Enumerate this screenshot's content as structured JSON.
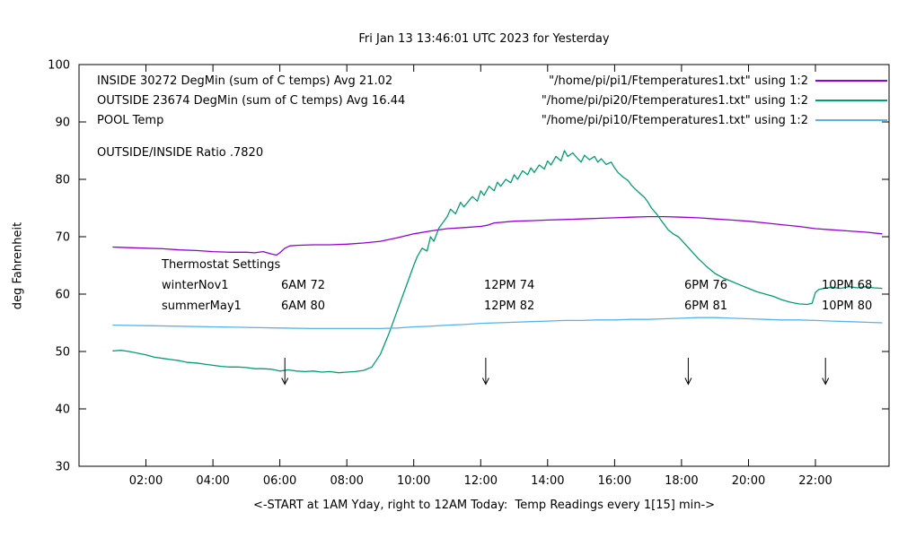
{
  "title": "Fri Jan 13 13:46:01 UTC 2023 for Yesterday",
  "ylabel": "deg Fahrenheit",
  "xlabel": "<-START at 1AM Yday, right to 12AM Today:  Temp Readings every 1[15] min->",
  "annotations": {
    "inside_label": "INSIDE 30272 DegMin (sum of C temps) Avg 21.02",
    "outside_label": "OUTSIDE 23674 DegMin (sum of C temps) Avg 16.44",
    "pool_label": "POOL Temp",
    "ratio_label": "OUTSIDE/INSIDE Ratio .7820",
    "thermostat": {
      "heading": "Thermostat Settings",
      "rows": [
        {
          "name": "winterNov1",
          "settings": [
            "6AM 72",
            "12PM 74",
            "6PM 76",
            "10PM 68"
          ]
        },
        {
          "name": "summerMay1",
          "settings": [
            "6AM 80",
            "12PM 82",
            "6PM 81",
            "10PM 80"
          ]
        }
      ]
    }
  },
  "chart_data": {
    "type": "line",
    "title": "Fri Jan 13 13:46:01 UTC 2023 for Yesterday",
    "xlabel": "<-START at 1AM Yday, right to 12AM Today:  Temp Readings every 1[15] min->",
    "ylabel": "deg Fahrenheit",
    "xlim": [
      0,
      24.2
    ],
    "ylim": [
      30,
      100
    ],
    "grid": false,
    "legend_position": "top right",
    "xticks": [
      {
        "v": 2,
        "label": "02:00"
      },
      {
        "v": 4,
        "label": "04:00"
      },
      {
        "v": 6,
        "label": "06:00"
      },
      {
        "v": 8,
        "label": "08:00"
      },
      {
        "v": 10,
        "label": "10:00"
      },
      {
        "v": 12,
        "label": "12:00"
      },
      {
        "v": 14,
        "label": "14:00"
      },
      {
        "v": 16,
        "label": "16:00"
      },
      {
        "v": 18,
        "label": "18:00"
      },
      {
        "v": 20,
        "label": "20:00"
      },
      {
        "v": 22,
        "label": "22:00"
      }
    ],
    "yticks": [
      30,
      40,
      50,
      60,
      70,
      80,
      90,
      100
    ],
    "arrows": [
      {
        "x": 6.15,
        "y_from": 48.9,
        "y_to": 44.3
      },
      {
        "x": 12.15,
        "y_from": 48.9,
        "y_to": 44.3
      },
      {
        "x": 18.2,
        "y_from": 48.9,
        "y_to": 44.3
      },
      {
        "x": 22.3,
        "y_from": 48.9,
        "y_to": 44.3
      }
    ],
    "series": [
      {
        "name": "INSIDE",
        "legend": "\"/home/pi/pi1/Ftemperatures1.txt\" using 1:2",
        "color": "#9400d3",
        "points": [
          [
            1,
            68.2
          ],
          [
            1.5,
            68.1
          ],
          [
            2,
            68
          ],
          [
            2.5,
            67.9
          ],
          [
            3,
            67.7
          ],
          [
            3.5,
            67.6
          ],
          [
            4,
            67.4
          ],
          [
            4.5,
            67.3
          ],
          [
            5,
            67.3
          ],
          [
            5.25,
            67.2
          ],
          [
            5.5,
            67.4
          ],
          [
            5.75,
            67
          ],
          [
            5.9,
            66.8
          ],
          [
            6,
            67.2
          ],
          [
            6.15,
            68
          ],
          [
            6.3,
            68.4
          ],
          [
            6.5,
            68.5
          ],
          [
            7,
            68.6
          ],
          [
            7.5,
            68.6
          ],
          [
            8,
            68.7
          ],
          [
            8.5,
            68.9
          ],
          [
            9,
            69.2
          ],
          [
            9.5,
            69.8
          ],
          [
            10,
            70.5
          ],
          [
            10.5,
            71
          ],
          [
            11,
            71.4
          ],
          [
            11.5,
            71.6
          ],
          [
            12,
            71.8
          ],
          [
            12.2,
            72
          ],
          [
            12.4,
            72.4
          ],
          [
            13,
            72.7
          ],
          [
            13.5,
            72.8
          ],
          [
            14,
            72.9
          ],
          [
            14.5,
            73
          ],
          [
            15,
            73.1
          ],
          [
            15.5,
            73.2
          ],
          [
            16,
            73.3
          ],
          [
            16.5,
            73.4
          ],
          [
            17,
            73.5
          ],
          [
            17.5,
            73.5
          ],
          [
            18,
            73.4
          ],
          [
            18.5,
            73.3
          ],
          [
            19,
            73.1
          ],
          [
            19.5,
            72.9
          ],
          [
            20,
            72.7
          ],
          [
            20.5,
            72.4
          ],
          [
            21,
            72.1
          ],
          [
            21.5,
            71.8
          ],
          [
            22,
            71.4
          ],
          [
            22.5,
            71.2
          ],
          [
            23,
            71
          ],
          [
            23.5,
            70.8
          ],
          [
            24,
            70.5
          ]
        ]
      },
      {
        "name": "OUTSIDE",
        "legend": "\"/home/pi/pi20/Ftemperatures1.txt\" using 1:2",
        "color": "#009e73",
        "points": [
          [
            1,
            50.1
          ],
          [
            1.25,
            50.2
          ],
          [
            1.5,
            50
          ],
          [
            1.75,
            49.7
          ],
          [
            2,
            49.4
          ],
          [
            2.25,
            49
          ],
          [
            2.5,
            48.8
          ],
          [
            2.75,
            48.6
          ],
          [
            3,
            48.4
          ],
          [
            3.25,
            48.1
          ],
          [
            3.5,
            48
          ],
          [
            3.75,
            47.8
          ],
          [
            4,
            47.6
          ],
          [
            4.25,
            47.4
          ],
          [
            4.5,
            47.3
          ],
          [
            4.75,
            47.3
          ],
          [
            5,
            47.2
          ],
          [
            5.25,
            47
          ],
          [
            5.5,
            47
          ],
          [
            5.75,
            46.9
          ],
          [
            6,
            46.6
          ],
          [
            6.25,
            46.8
          ],
          [
            6.5,
            46.6
          ],
          [
            6.75,
            46.5
          ],
          [
            7,
            46.6
          ],
          [
            7.25,
            46.4
          ],
          [
            7.5,
            46.5
          ],
          [
            7.75,
            46.3
          ],
          [
            8,
            46.4
          ],
          [
            8.25,
            46.5
          ],
          [
            8.5,
            46.7
          ],
          [
            8.75,
            47.3
          ],
          [
            9,
            49.5
          ],
          [
            9.25,
            53
          ],
          [
            9.5,
            57
          ],
          [
            9.75,
            61
          ],
          [
            10,
            65
          ],
          [
            10.1,
            66.5
          ],
          [
            10.25,
            68
          ],
          [
            10.4,
            67.5
          ],
          [
            10.5,
            70
          ],
          [
            10.6,
            69.2
          ],
          [
            10.75,
            71.5
          ],
          [
            11,
            73.5
          ],
          [
            11.1,
            74.8
          ],
          [
            11.25,
            74
          ],
          [
            11.4,
            76
          ],
          [
            11.5,
            75.2
          ],
          [
            11.75,
            77
          ],
          [
            11.9,
            76.2
          ],
          [
            12,
            78
          ],
          [
            12.1,
            77.2
          ],
          [
            12.25,
            78.8
          ],
          [
            12.4,
            78
          ],
          [
            12.5,
            79.5
          ],
          [
            12.6,
            78.8
          ],
          [
            12.75,
            80
          ],
          [
            12.9,
            79.4
          ],
          [
            13,
            80.8
          ],
          [
            13.1,
            80
          ],
          [
            13.25,
            81.5
          ],
          [
            13.4,
            80.8
          ],
          [
            13.5,
            82
          ],
          [
            13.6,
            81.2
          ],
          [
            13.75,
            82.5
          ],
          [
            13.9,
            81.8
          ],
          [
            14,
            83.2
          ],
          [
            14.1,
            82.5
          ],
          [
            14.25,
            84
          ],
          [
            14.4,
            83.2
          ],
          [
            14.5,
            85
          ],
          [
            14.6,
            84
          ],
          [
            14.75,
            84.6
          ],
          [
            14.9,
            83.6
          ],
          [
            15,
            83
          ],
          [
            15.1,
            84.2
          ],
          [
            15.25,
            83.4
          ],
          [
            15.4,
            84
          ],
          [
            15.5,
            83
          ],
          [
            15.6,
            83.6
          ],
          [
            15.75,
            82.6
          ],
          [
            15.9,
            83
          ],
          [
            16,
            82
          ],
          [
            16.1,
            81.2
          ],
          [
            16.25,
            80.4
          ],
          [
            16.4,
            79.8
          ],
          [
            16.5,
            79
          ],
          [
            16.6,
            78.4
          ],
          [
            16.75,
            77.6
          ],
          [
            16.9,
            76.8
          ],
          [
            17,
            76
          ],
          [
            17.1,
            75
          ],
          [
            17.25,
            74
          ],
          [
            17.4,
            72.8
          ],
          [
            17.5,
            72
          ],
          [
            17.6,
            71.2
          ],
          [
            17.75,
            70.5
          ],
          [
            17.9,
            70
          ],
          [
            18,
            69.4
          ],
          [
            18.25,
            67.8
          ],
          [
            18.5,
            66.2
          ],
          [
            18.75,
            64.8
          ],
          [
            19,
            63.6
          ],
          [
            19.25,
            62.8
          ],
          [
            19.5,
            62.2
          ],
          [
            19.75,
            61.6
          ],
          [
            20,
            61
          ],
          [
            20.25,
            60.4
          ],
          [
            20.5,
            60
          ],
          [
            20.75,
            59.6
          ],
          [
            21,
            59
          ],
          [
            21.25,
            58.6
          ],
          [
            21.5,
            58.3
          ],
          [
            21.75,
            58.2
          ],
          [
            21.9,
            58.4
          ],
          [
            22,
            60.3
          ],
          [
            22.1,
            60.8
          ],
          [
            22.25,
            61
          ],
          [
            22.5,
            61.2
          ],
          [
            22.75,
            61
          ],
          [
            23,
            61.3
          ],
          [
            23.25,
            61.1
          ],
          [
            23.5,
            61.3
          ],
          [
            23.75,
            61.1
          ],
          [
            24,
            61
          ]
        ]
      },
      {
        "name": "POOL",
        "legend": "\"/home/pi/pi10/Ftemperatures1.txt\" using 1:2",
        "color": "#56b4e9",
        "points": [
          [
            1,
            54.6
          ],
          [
            2,
            54.5
          ],
          [
            3,
            54.4
          ],
          [
            4,
            54.3
          ],
          [
            5,
            54.2
          ],
          [
            6,
            54.1
          ],
          [
            7,
            54
          ],
          [
            8,
            54
          ],
          [
            9,
            54
          ],
          [
            9.5,
            54.1
          ],
          [
            10,
            54.3
          ],
          [
            10.5,
            54.4
          ],
          [
            11,
            54.6
          ],
          [
            11.5,
            54.7
          ],
          [
            12,
            54.9
          ],
          [
            12.5,
            55
          ],
          [
            13,
            55.1
          ],
          [
            13.5,
            55.2
          ],
          [
            14,
            55.3
          ],
          [
            14.5,
            55.4
          ],
          [
            15,
            55.4
          ],
          [
            15.5,
            55.5
          ],
          [
            16,
            55.5
          ],
          [
            16.5,
            55.6
          ],
          [
            17,
            55.6
          ],
          [
            17.5,
            55.7
          ],
          [
            18,
            55.8
          ],
          [
            18.5,
            55.9
          ],
          [
            19,
            55.9
          ],
          [
            19.5,
            55.8
          ],
          [
            20,
            55.7
          ],
          [
            20.5,
            55.6
          ],
          [
            21,
            55.5
          ],
          [
            21.5,
            55.5
          ],
          [
            22,
            55.4
          ],
          [
            22.5,
            55.3
          ],
          [
            23,
            55.2
          ],
          [
            23.5,
            55.1
          ],
          [
            24,
            55
          ]
        ]
      }
    ]
  }
}
